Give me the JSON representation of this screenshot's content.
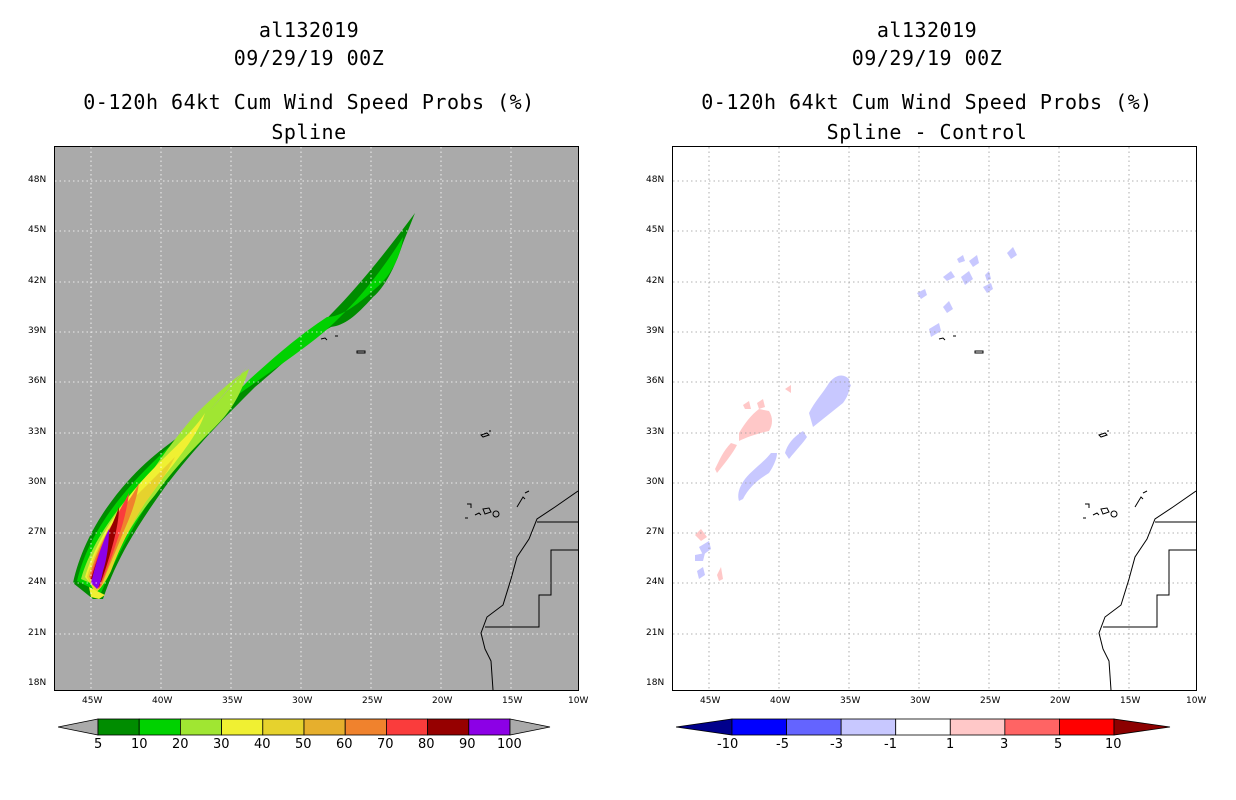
{
  "left": {
    "title": [
      "al132019",
      "09/29/19 00Z",
      "0-120h 64kt Cum Wind Speed Probs (%)",
      "Spline"
    ],
    "lat_labels": [
      "48N",
      "45N",
      "42N",
      "39N",
      "36N",
      "33N",
      "30N",
      "27N",
      "24N",
      "21N",
      "18N"
    ],
    "lon_labels": [
      "45W",
      "40W",
      "35W",
      "30W",
      "25W",
      "20W",
      "15W",
      "10W"
    ],
    "colorbar": {
      "labels": [
        "5",
        "10",
        "20",
        "30",
        "40",
        "50",
        "60",
        "70",
        "80",
        "90",
        "100"
      ],
      "colors": [
        "#008c00",
        "#00d200",
        "#a0e632",
        "#f0f032",
        "#e6d22d",
        "#e6af2d",
        "#f0822d",
        "#fa3c3c",
        "#960000",
        "#8c00e6"
      ],
      "extend_color": "#aaaaaa"
    },
    "background_color": "#aaaaaa"
  },
  "right": {
    "title": [
      "al132019",
      "09/29/19 00Z",
      "0-120h 64kt Cum Wind Speed Probs (%)",
      "Spline - Control"
    ],
    "lat_labels": [
      "48N",
      "45N",
      "42N",
      "39N",
      "36N",
      "33N",
      "30N",
      "27N",
      "24N",
      "21N",
      "18N"
    ],
    "lon_labels": [
      "45W",
      "40W",
      "35W",
      "30W",
      "25W",
      "20W",
      "15W",
      "10W"
    ],
    "colorbar": {
      "labels": [
        "-10",
        "-5",
        "-3",
        "-1",
        "1",
        "3",
        "5",
        "10"
      ],
      "colors": [
        "#0000ff",
        "#6464ff",
        "#c8c8ff",
        "#ffffff",
        "#ffc8c8",
        "#ff6464",
        "#ff0000"
      ],
      "low_color": "#00008c",
      "high_color": "#8c0000"
    },
    "background_color": "#ffffff"
  }
}
